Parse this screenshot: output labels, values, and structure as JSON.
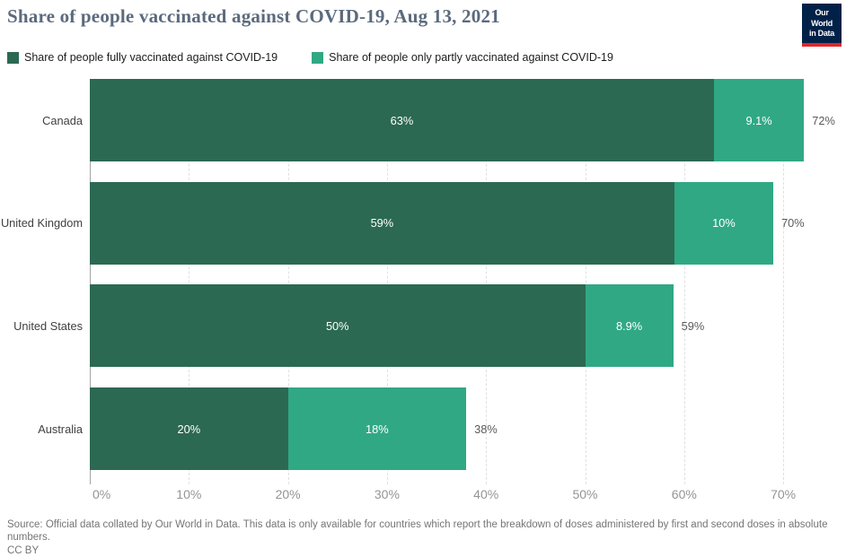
{
  "header": {
    "title": "Share of people vaccinated against COVID-19, Aug 13, 2021",
    "logo": {
      "line1": "Our World",
      "line2": "in Data"
    }
  },
  "legend": {
    "items": [
      {
        "label": "Share of people fully vaccinated against COVID-19",
        "color": "#2c6952"
      },
      {
        "label": "Share of people only partly vaccinated against COVID-19",
        "color": "#30a884"
      }
    ]
  },
  "chart_data": {
    "type": "bar",
    "orientation": "horizontal",
    "stacked": true,
    "categories": [
      "Canada",
      "United Kingdom",
      "United States",
      "Australia"
    ],
    "series": [
      {
        "name": "Share of people fully vaccinated against COVID-19",
        "color": "#2c6952",
        "values": [
          63,
          59,
          50,
          20
        ],
        "labels": [
          "63%",
          "59%",
          "50%",
          "20%"
        ]
      },
      {
        "name": "Share of people only partly vaccinated against COVID-19",
        "color": "#30a884",
        "values": [
          9.1,
          10,
          8.9,
          18
        ],
        "labels": [
          "9.1%",
          "10%",
          "8.9%",
          "18%"
        ]
      }
    ],
    "totals": [
      "72%",
      "70%",
      "59%",
      "38%"
    ],
    "x_axis": {
      "ticks": [
        "0%",
        "10%",
        "20%",
        "30%",
        "40%",
        "50%",
        "60%",
        "70%"
      ],
      "values": [
        0,
        10,
        20,
        30,
        40,
        50,
        60,
        70
      ],
      "min": 0,
      "max": 72.1,
      "gridlines": "dashed"
    },
    "legend_position": "top"
  },
  "footer": {
    "source": "Source: Official data collated by Our World in Data. This data is only available for countries which report the breakdown of doses administered by first and second doses in absolute numbers.",
    "license": "CC BY"
  },
  "colors": {
    "fully_vaccinated": "#2c6952",
    "partly_vaccinated": "#30a884",
    "logo_bg": "#002147",
    "logo_accent": "#e0262c",
    "title": "#5b6a7d"
  }
}
